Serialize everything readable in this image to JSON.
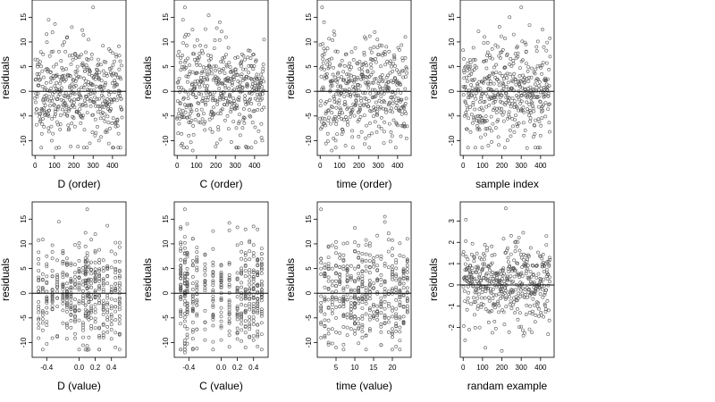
{
  "figure": {
    "ncols": 4,
    "nrows": 2,
    "background": "#ffffff",
    "point_color": "#555555",
    "point_style": "open-circle",
    "reference_line_color": "#000000"
  },
  "chart_data": [
    {
      "type": "scatter",
      "xlabel": "D (order)",
      "ylabel": "residuals",
      "xlim": [
        -15,
        470
      ],
      "ylim": [
        -13,
        18.5
      ],
      "xticks": [
        0,
        100,
        200,
        300,
        400
      ],
      "xtick_labels": [
        "0",
        "100",
        "200",
        "300",
        "400"
      ],
      "yticks": [
        -10,
        -5,
        0,
        5,
        10,
        15
      ],
      "ytick_labels": [
        "-10",
        "-5",
        "0",
        "5",
        "10",
        "15"
      ],
      "reference_line_y": 0,
      "n_points": 450,
      "seed": 11,
      "x_kind": "index",
      "y_sd": 5,
      "samples": [
        {
          "x": 300,
          "y": 17
        },
        {
          "x": 70,
          "y": 14.5
        },
        {
          "x": 190,
          "y": 13
        },
        {
          "x": 110,
          "y": -11.5
        },
        {
          "x": 330,
          "y": -10
        },
        {
          "x": 420,
          "y": 7
        }
      ]
    },
    {
      "type": "scatter",
      "xlabel": "C (order)",
      "ylabel": "residuals",
      "xlim": [
        -15,
        470
      ],
      "ylim": [
        -13,
        18.5
      ],
      "xticks": [
        0,
        100,
        200,
        300,
        400
      ],
      "xtick_labels": [
        "0",
        "100",
        "200",
        "300",
        "400"
      ],
      "yticks": [
        -10,
        -5,
        0,
        5,
        10,
        15
      ],
      "ytick_labels": [
        "-10",
        "-5",
        "0",
        "5",
        "10",
        "15"
      ],
      "reference_line_y": 0,
      "n_points": 450,
      "seed": 23,
      "x_kind": "index",
      "y_sd": 5,
      "samples": [
        {
          "x": 40,
          "y": 17
        },
        {
          "x": 30,
          "y": 14.5
        },
        {
          "x": 220,
          "y": 14
        },
        {
          "x": 80,
          "y": -12
        },
        {
          "x": 60,
          "y": -9
        },
        {
          "x": 440,
          "y": -10
        }
      ]
    },
    {
      "type": "scatter",
      "xlabel": "time (order)",
      "ylabel": "residuals",
      "xlim": [
        -15,
        470
      ],
      "ylim": [
        -13,
        18.5
      ],
      "xticks": [
        0,
        100,
        200,
        300,
        400
      ],
      "xtick_labels": [
        "0",
        "100",
        "200",
        "300",
        "400"
      ],
      "yticks": [
        -10,
        -5,
        0,
        5,
        10,
        15
      ],
      "ytick_labels": [
        "-10",
        "-5",
        "0",
        "5",
        "10",
        "15"
      ],
      "reference_line_y": 0,
      "n_points": 450,
      "seed": 37,
      "x_kind": "index",
      "y_sd": 5,
      "samples": [
        {
          "x": 10,
          "y": 17
        },
        {
          "x": 20,
          "y": 14
        },
        {
          "x": 60,
          "y": -12
        },
        {
          "x": 80,
          "y": -10
        },
        {
          "x": 440,
          "y": 11
        },
        {
          "x": 230,
          "y": 11
        }
      ]
    },
    {
      "type": "scatter",
      "xlabel": "sample index",
      "ylabel": "residuals",
      "xlim": [
        -15,
        470
      ],
      "ylim": [
        -13,
        18.5
      ],
      "xticks": [
        0,
        100,
        200,
        300,
        400
      ],
      "xtick_labels": [
        "0",
        "100",
        "200",
        "300",
        "400"
      ],
      "yticks": [
        -10,
        -5,
        0,
        5,
        10,
        15
      ],
      "ytick_labels": [
        "-10",
        "-5",
        "0",
        "5",
        "10",
        "15"
      ],
      "reference_line_y": 0,
      "n_points": 450,
      "seed": 41,
      "x_kind": "index",
      "y_sd": 5,
      "samples": [
        {
          "x": 300,
          "y": 17
        },
        {
          "x": 240,
          "y": 15
        },
        {
          "x": 110,
          "y": 11
        },
        {
          "x": 130,
          "y": -11
        },
        {
          "x": 330,
          "y": -11.5
        },
        {
          "x": 400,
          "y": -9
        }
      ]
    },
    {
      "type": "scatter",
      "xlabel": "D (value)",
      "ylabel": "residuals",
      "xlim": [
        -0.58,
        0.58
      ],
      "ylim": [
        -13,
        18.5
      ],
      "xticks": [
        -0.4,
        0.0,
        0.2,
        0.4
      ],
      "xtick_labels": [
        "-0.4",
        "0.0",
        "0.2",
        "0.4"
      ],
      "yticks": [
        -10,
        -5,
        0,
        5,
        10,
        15
      ],
      "ytick_labels": [
        "-10",
        "-5",
        "0",
        "5",
        "10",
        "15"
      ],
      "reference_line_y": 0,
      "n_points": 450,
      "seed": 53,
      "x_kind": "levels",
      "x_levels": [
        -0.5,
        -0.45,
        -0.4,
        -0.33,
        -0.27,
        -0.2,
        -0.15,
        -0.1,
        -0.05,
        0.0,
        0.05,
        0.08,
        0.1,
        0.12,
        0.15,
        0.2,
        0.25,
        0.3,
        0.35,
        0.4,
        0.45,
        0.5
      ],
      "y_sd": 5,
      "samples": [
        {
          "x": 0.1,
          "y": 17
        },
        {
          "x": -0.25,
          "y": 14.5
        },
        {
          "x": 0.1,
          "y": -11.5
        },
        {
          "x": 0.25,
          "y": -9
        }
      ]
    },
    {
      "type": "scatter",
      "xlabel": "C (value)",
      "ylabel": "residuals",
      "xlim": [
        -0.58,
        0.58
      ],
      "ylim": [
        -13,
        18.5
      ],
      "xticks": [
        -0.4,
        0.0,
        0.2,
        0.4
      ],
      "xtick_labels": [
        "-0.4",
        "0.0",
        "0.2",
        "0.4"
      ],
      "yticks": [
        -10,
        -5,
        0,
        5,
        10,
        15
      ],
      "ytick_labels": [
        "-10",
        "-5",
        "0",
        "5",
        "10",
        "15"
      ],
      "reference_line_y": 0,
      "n_points": 450,
      "seed": 67,
      "x_kind": "levels",
      "x_levels": [
        -0.5,
        -0.45,
        -0.42,
        -0.35,
        -0.3,
        -0.2,
        -0.1,
        0.0,
        0.1,
        0.2,
        0.25,
        0.3,
        0.35,
        0.4,
        0.45,
        0.5
      ],
      "y_sd": 5,
      "samples": [
        {
          "x": -0.45,
          "y": 17
        },
        {
          "x": -0.45,
          "y": -12
        },
        {
          "x": 0.3,
          "y": -11
        },
        {
          "x": -0.35,
          "y": 11
        }
      ]
    },
    {
      "type": "scatter",
      "xlabel": "time (value)",
      "ylabel": "residuals",
      "xlim": [
        0,
        25
      ],
      "ylim": [
        -13,
        18.5
      ],
      "xticks": [
        5,
        10,
        15,
        20
      ],
      "xtick_labels": [
        "5",
        "10",
        "15",
        "20"
      ],
      "yticks": [
        -10,
        -5,
        0,
        5,
        10,
        15
      ],
      "ytick_labels": [
        "-10",
        "-5",
        "0",
        "5",
        "10",
        "15"
      ],
      "reference_line_y": 0,
      "n_points": 450,
      "seed": 79,
      "x_kind": "levels",
      "x_levels": [
        1,
        2,
        3,
        4,
        5,
        6,
        7,
        8,
        9,
        10,
        11,
        12,
        13,
        14,
        15,
        16,
        17,
        18,
        19,
        20,
        21,
        22,
        23,
        24
      ],
      "y_sd": 5,
      "samples": [
        {
          "x": 1,
          "y": 17
        },
        {
          "x": 5,
          "y": -11
        },
        {
          "x": 24,
          "y": 11
        },
        {
          "x": 12,
          "y": 8
        }
      ]
    },
    {
      "type": "scatter",
      "xlabel": "randam example",
      "ylabel": "residuals",
      "xlim": [
        -15,
        470
      ],
      "ylim": [
        -3.4,
        3.9
      ],
      "xticks": [
        0,
        100,
        200,
        300,
        400
      ],
      "xtick_labels": [
        "0",
        "100",
        "200",
        "300",
        "400"
      ],
      "yticks": [
        -2,
        -1,
        0,
        1,
        2,
        3
      ],
      "ytick_labels": [
        "-2",
        "-1",
        "0",
        "1",
        "2",
        "3"
      ],
      "reference_line_y": 0,
      "n_points": 450,
      "seed": 97,
      "x_kind": "index",
      "y_sd": 1,
      "samples": [
        {
          "x": 220,
          "y": 3.6
        },
        {
          "x": 200,
          "y": -3.1
        },
        {
          "x": 10,
          "y": -2.6
        },
        {
          "x": 430,
          "y": 2.3
        }
      ]
    }
  ]
}
